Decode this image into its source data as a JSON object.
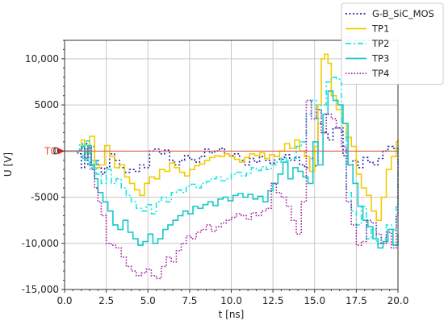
{
  "chart_data": {
    "type": "line",
    "xlabel": "t [ns]",
    "ylabel": "U [V]",
    "xlim": [
      0,
      20
    ],
    "ylim": [
      -15000,
      12000
    ],
    "grid": true,
    "legend_position": "top-right",
    "x_ticks": [
      0,
      2.5,
      5,
      7.5,
      10,
      12.5,
      15,
      17.5,
      20
    ],
    "x_tick_labels": [
      "0.0",
      "2.5",
      "5.0",
      "7.5",
      "10.0",
      "12.5",
      "15.0",
      "17.5",
      "20.0"
    ],
    "y_ticks": [
      -15000,
      -10000,
      -5000,
      0,
      5000,
      10000
    ],
    "y_tick_labels": [
      "-15,000",
      "-10,000",
      "-5000",
      "0",
      "5000",
      "10,000"
    ],
    "reference_level": {
      "label": "T0",
      "value": 0,
      "color": "#e0533c"
    },
    "series": [
      {
        "name": "G-B_SiC_MOS",
        "color": "#1f1f9e",
        "dash": "2,2.5",
        "x": [
          0,
          0.8,
          1.0,
          1.2,
          1.4,
          1.6,
          1.8,
          2.0,
          2.2,
          2.4,
          2.7,
          3.0,
          3.3,
          3.6,
          3.9,
          4.2,
          4.5,
          4.8,
          5.1,
          5.4,
          5.7,
          6.0,
          6.3,
          6.6,
          6.9,
          7.2,
          7.5,
          7.8,
          8.1,
          8.4,
          8.7,
          9.0,
          9.3,
          9.6,
          9.9,
          10.2,
          10.5,
          10.8,
          11.1,
          11.4,
          11.7,
          12.0,
          12.3,
          12.6,
          12.9,
          13.2,
          13.5,
          13.8,
          14.1,
          14.4,
          14.7,
          15.0,
          15.2,
          15.5,
          15.8,
          16.1,
          16.4,
          16.7,
          17.0,
          17.3,
          17.6,
          17.9,
          18.2,
          18.5,
          18.8,
          19.1,
          19.4,
          19.7,
          20.0
        ],
        "y": [
          0,
          -300,
          -1800,
          800,
          -1500,
          500,
          -1000,
          -1800,
          -2500,
          -1800,
          -300,
          -1000,
          -1800,
          -2300,
          -2000,
          -2200,
          -1500,
          -1800,
          0,
          200,
          -300,
          100,
          -1000,
          -1500,
          -1000,
          -500,
          -900,
          -1200,
          -600,
          200,
          -200,
          0,
          300,
          -300,
          -500,
          -300,
          -1000,
          -1500,
          -800,
          -1200,
          -600,
          -1000,
          -1300,
          -600,
          -900,
          -400,
          -1000,
          -700,
          -1500,
          -1800,
          -800,
          -1600,
          3000,
          2000,
          1200,
          2500,
          2500,
          -500,
          -1500,
          -1000,
          -1800,
          -700,
          -1200,
          -1500,
          -800,
          0,
          500,
          300,
          600
        ]
      },
      {
        "name": "TP1",
        "color": "#f2cc00",
        "dash": "",
        "x": [
          0,
          1.0,
          1.2,
          1.5,
          1.8,
          2.1,
          2.4,
          2.7,
          3.0,
          3.3,
          3.6,
          3.9,
          4.2,
          4.5,
          4.8,
          5.1,
          5.4,
          5.7,
          6.0,
          6.3,
          6.6,
          6.9,
          7.2,
          7.5,
          7.8,
          8.1,
          8.4,
          8.7,
          9.0,
          9.3,
          9.6,
          9.9,
          10.2,
          10.5,
          10.8,
          11.1,
          11.4,
          11.7,
          12.0,
          12.3,
          12.6,
          12.9,
          13.2,
          13.5,
          13.8,
          14.1,
          14.4,
          14.7,
          15.0,
          15.2,
          15.4,
          15.6,
          15.8,
          16.0,
          16.3,
          16.6,
          16.9,
          17.2,
          17.5,
          17.8,
          18.1,
          18.4,
          18.7,
          19.0,
          19.3,
          19.6,
          19.9,
          20.0
        ],
        "y": [
          0,
          1200,
          -300,
          1600,
          -1800,
          -1500,
          600,
          -600,
          -1800,
          -1500,
          -2800,
          -3500,
          -4200,
          -4800,
          -3500,
          -2800,
          -3000,
          -2000,
          -2200,
          -1300,
          -1800,
          -2300,
          -2700,
          -2000,
          -1600,
          -1400,
          -1000,
          -700,
          -500,
          -600,
          -300,
          -600,
          -900,
          -1200,
          -700,
          -300,
          -500,
          -200,
          -800,
          -400,
          -600,
          0,
          800,
          300,
          1200,
          0,
          -600,
          -2200,
          500,
          5000,
          10000,
          10500,
          9500,
          6000,
          4500,
          3000,
          1500,
          500,
          -2500,
          -4000,
          -4800,
          -6500,
          -7500,
          -5000,
          -2000,
          -600,
          1000,
          1300
        ]
      },
      {
        "name": "TP2",
        "color": "#19e6e6",
        "dash": "7,3,2,3",
        "x": [
          0,
          0.9,
          1.1,
          1.3,
          1.5,
          1.7,
          1.9,
          2.2,
          2.5,
          2.8,
          3.1,
          3.4,
          3.7,
          4.0,
          4.3,
          4.6,
          4.9,
          5.2,
          5.5,
          5.8,
          6.1,
          6.4,
          6.7,
          7.0,
          7.3,
          7.6,
          7.9,
          8.2,
          8.5,
          8.8,
          9.1,
          9.4,
          9.7,
          10.0,
          10.3,
          10.6,
          10.9,
          11.2,
          11.5,
          11.8,
          12.1,
          12.4,
          12.7,
          13.0,
          13.3,
          13.6,
          13.9,
          14.2,
          14.5,
          14.8,
          15.1,
          15.4,
          15.7,
          16.0,
          16.3,
          16.6,
          16.9,
          17.2,
          17.5,
          17.8,
          18.1,
          18.4,
          18.7,
          19.0,
          19.3,
          19.6,
          19.9,
          20.0
        ],
        "y": [
          0,
          800,
          -800,
          1100,
          -2000,
          -1000,
          -2500,
          -3500,
          -2000,
          -3500,
          -3000,
          -4000,
          -4800,
          -5500,
          -6200,
          -6500,
          -5800,
          -6800,
          -5500,
          -5000,
          -5500,
          -4500,
          -4200,
          -4500,
          -3800,
          -3600,
          -4000,
          -3500,
          -3300,
          -3000,
          -2800,
          -3200,
          -3000,
          -2500,
          -2300,
          -2700,
          -2400,
          -1800,
          -2100,
          -1700,
          -2000,
          -1500,
          -1200,
          -600,
          -1000,
          -800,
          500,
          1000,
          4000,
          5500,
          3500,
          5000,
          7500,
          8000,
          7800,
          2000,
          -4500,
          -6500,
          -8000,
          -6000,
          -9500,
          -8500,
          -10000,
          -9500,
          -8000,
          -8500,
          -6000,
          300
        ]
      },
      {
        "name": "TP3",
        "color": "#14c8c8",
        "dash": "",
        "x": [
          0,
          1.0,
          1.2,
          1.4,
          1.6,
          1.8,
          2.0,
          2.3,
          2.6,
          2.9,
          3.2,
          3.5,
          3.8,
          4.1,
          4.4,
          4.7,
          5.0,
          5.3,
          5.6,
          5.9,
          6.2,
          6.5,
          6.8,
          7.1,
          7.4,
          7.7,
          8.0,
          8.3,
          8.6,
          8.9,
          9.2,
          9.5,
          9.8,
          10.1,
          10.4,
          10.7,
          11.0,
          11.3,
          11.6,
          11.9,
          12.2,
          12.5,
          12.8,
          13.1,
          13.4,
          13.7,
          14.0,
          14.3,
          14.6,
          14.9,
          15.2,
          15.5,
          15.8,
          16.1,
          16.4,
          16.7,
          17.0,
          17.3,
          17.6,
          17.9,
          18.2,
          18.5,
          18.8,
          19.1,
          19.4,
          19.7,
          20.0
        ],
        "y": [
          0,
          500,
          -1000,
          600,
          -1500,
          -3000,
          -4500,
          -5500,
          -6500,
          -8000,
          -8500,
          -7500,
          -8800,
          -9500,
          -10200,
          -9800,
          -9000,
          -10000,
          -9500,
          -8500,
          -8000,
          -7500,
          -7000,
          -6500,
          -6800,
          -6000,
          -6200,
          -5800,
          -5500,
          -5900,
          -5200,
          -5000,
          -5400,
          -4800,
          -4600,
          -5000,
          -4700,
          -5200,
          -4900,
          -5500,
          -4300,
          -3500,
          -2500,
          -1200,
          -3000,
          -1800,
          -2200,
          -2800,
          -3500,
          1000,
          -1500,
          4000,
          6500,
          5500,
          5000,
          3000,
          -1500,
          -3500,
          -6000,
          -7500,
          -8200,
          -9500,
          -10500,
          -9800,
          -8500,
          -10200,
          -9000
        ]
      },
      {
        "name": "TP4",
        "color": "#9c1a9c",
        "dash": "1.5,2",
        "x": [
          0,
          1.0,
          1.2,
          1.4,
          1.6,
          1.8,
          2.0,
          2.2,
          2.5,
          2.8,
          3.1,
          3.4,
          3.7,
          4.0,
          4.3,
          4.6,
          4.9,
          5.2,
          5.5,
          5.8,
          6.1,
          6.4,
          6.7,
          7.0,
          7.3,
          7.6,
          7.9,
          8.2,
          8.5,
          8.8,
          9.1,
          9.4,
          9.7,
          10.0,
          10.3,
          10.6,
          10.9,
          11.2,
          11.5,
          11.8,
          12.1,
          12.4,
          12.7,
          13.0,
          13.3,
          13.6,
          13.9,
          14.2,
          14.5,
          14.8,
          15.1,
          15.4,
          15.7,
          16.0,
          16.3,
          16.6,
          16.9,
          17.2,
          17.5,
          17.8,
          18.1,
          18.4,
          18.7,
          19.0,
          19.3,
          19.6,
          19.9,
          20.0
        ],
        "y": [
          0,
          300,
          -800,
          400,
          -2000,
          -4000,
          -5500,
          -7000,
          -10000,
          -10200,
          -10500,
          -11500,
          -12500,
          -13000,
          -13500,
          -13200,
          -12800,
          -13500,
          -13800,
          -12500,
          -11500,
          -12000,
          -10800,
          -10000,
          -9200,
          -9500,
          -8800,
          -8500,
          -8000,
          -8700,
          -8200,
          -7800,
          -7500,
          -7200,
          -6800,
          -7000,
          -7400,
          -6700,
          -7000,
          -6500,
          -6200,
          -3500,
          -4500,
          -5000,
          -6000,
          -7500,
          -9000,
          -5500,
          5500,
          3500,
          4500,
          2000,
          4000,
          3500,
          2500,
          500,
          -5500,
          -8000,
          -10200,
          -9800,
          -7500,
          -7800,
          -9000,
          -10000,
          -8800,
          -10500,
          -7000,
          0
        ]
      }
    ]
  }
}
